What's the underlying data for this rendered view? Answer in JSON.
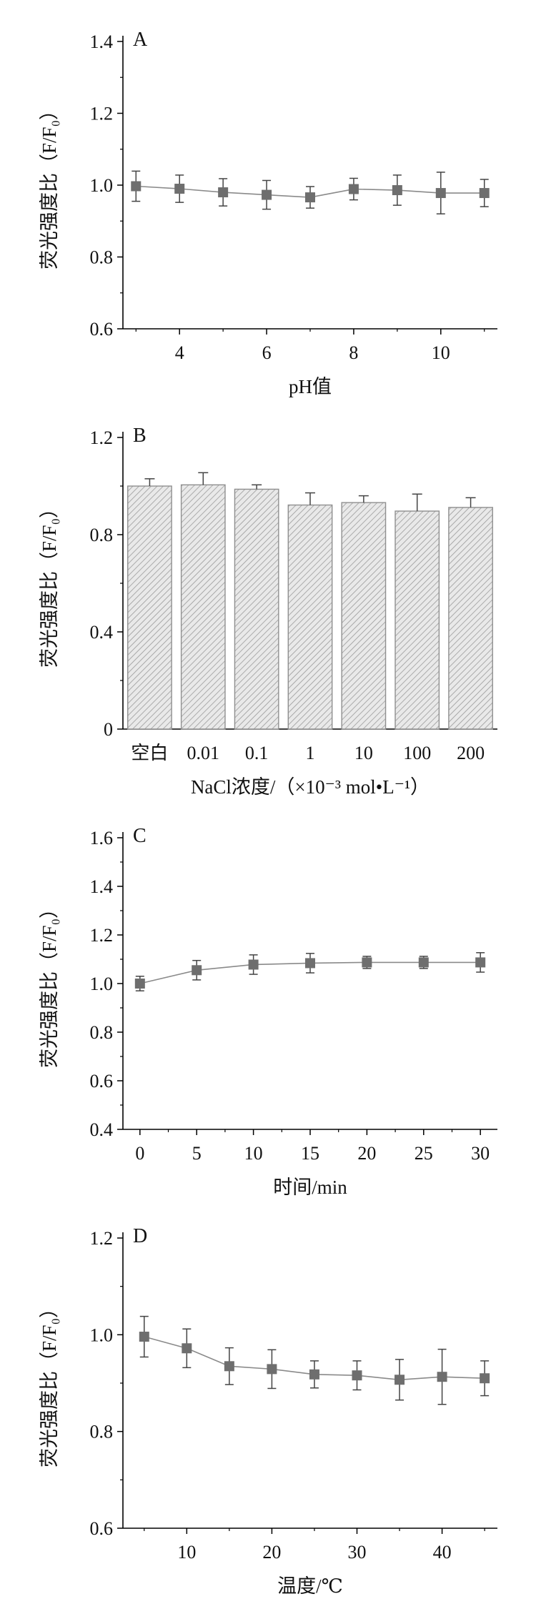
{
  "chart_data": [
    {
      "type": "line",
      "panel": "A",
      "xlabel": "pH值",
      "ylabel": "荧光强度比（F/F₀）",
      "xlim": [
        2.7,
        11.3
      ],
      "ylim": [
        0.6,
        1.4
      ],
      "xticks": [
        4,
        6,
        8,
        10
      ],
      "yticks": [
        0.6,
        0.8,
        1.0,
        1.2,
        1.4
      ],
      "ytick_labels": [
        "0.6",
        "0.8",
        "1.0",
        "1.2",
        "1.4"
      ],
      "grid": false,
      "series": [
        {
          "x": [
            3,
            4,
            5,
            6,
            7,
            8,
            9,
            10,
            11
          ],
          "y": [
            0.997,
            0.99,
            0.98,
            0.973,
            0.966,
            0.989,
            0.986,
            0.978,
            0.978
          ],
          "err": [
            0.042,
            0.038,
            0.038,
            0.04,
            0.03,
            0.03,
            0.042,
            0.058,
            0.038
          ]
        }
      ]
    },
    {
      "type": "bar",
      "panel": "B",
      "xlabel": "NaCl浓度/（×10⁻³ mol•L⁻¹）",
      "ylabel": "荧光强度比（F/F₀）",
      "categories": [
        "空白",
        "0.01",
        "0.1",
        "1",
        "10",
        "100",
        "200"
      ],
      "ylim": [
        0,
        1.2
      ],
      "yticks": [
        0,
        0.4,
        0.8,
        1.2
      ],
      "ytick_labels": [
        "0",
        "0.4",
        "0.8",
        "1.2"
      ],
      "grid": false,
      "series": [
        {
          "values": [
            1.0,
            1.005,
            0.987,
            0.922,
            0.932,
            0.897,
            0.912
          ],
          "err": [
            0.03,
            0.05,
            0.018,
            0.05,
            0.028,
            0.07,
            0.04
          ]
        }
      ]
    },
    {
      "type": "line",
      "panel": "C",
      "xlabel": "时间/min",
      "ylabel": "荧光强度比（F/F₀）",
      "xlim": [
        -1.5,
        31.5
      ],
      "ylim": [
        0.4,
        1.6
      ],
      "xticks": [
        0,
        5,
        10,
        15,
        20,
        25,
        30
      ],
      "yticks": [
        0.4,
        0.6,
        0.8,
        1.0,
        1.2,
        1.4,
        1.6
      ],
      "ytick_labels": [
        "0.4",
        "0.6",
        "0.8",
        "1.0",
        "1.2",
        "1.4",
        "1.6"
      ],
      "grid": false,
      "series": [
        {
          "x": [
            0,
            5,
            10,
            15,
            20,
            25,
            30
          ],
          "y": [
            1.0,
            1.055,
            1.078,
            1.084,
            1.087,
            1.087,
            1.087
          ],
          "err": [
            0.03,
            0.04,
            0.04,
            0.04,
            0.025,
            0.025,
            0.04
          ]
        }
      ]
    },
    {
      "type": "line",
      "panel": "D",
      "xlabel": "温度/℃",
      "ylabel": "荧光强度比（F/F₀）",
      "xlim": [
        2.5,
        46.5
      ],
      "ylim": [
        0.6,
        1.2
      ],
      "xticks": [
        10,
        20,
        30,
        40
      ],
      "yticks": [
        0.6,
        0.8,
        1.0,
        1.2
      ],
      "ytick_labels": [
        "0.6",
        "0.8",
        "1.0",
        "1.2"
      ],
      "grid": false,
      "series": [
        {
          "x": [
            5,
            10,
            15,
            20,
            25,
            30,
            35,
            40,
            45
          ],
          "y": [
            0.996,
            0.972,
            0.935,
            0.929,
            0.918,
            0.916,
            0.907,
            0.913,
            0.91
          ],
          "err": [
            0.042,
            0.04,
            0.038,
            0.04,
            0.028,
            0.03,
            0.042,
            0.057,
            0.036
          ]
        }
      ]
    }
  ],
  "colors": {
    "marker": "#6e6e6e",
    "line": "#8a8a8a",
    "bar_fill": "#e6e6e6",
    "bar_hatch": "#9a9a9a",
    "bar_edge": "#8f8f8f",
    "axis": "#000000"
  }
}
